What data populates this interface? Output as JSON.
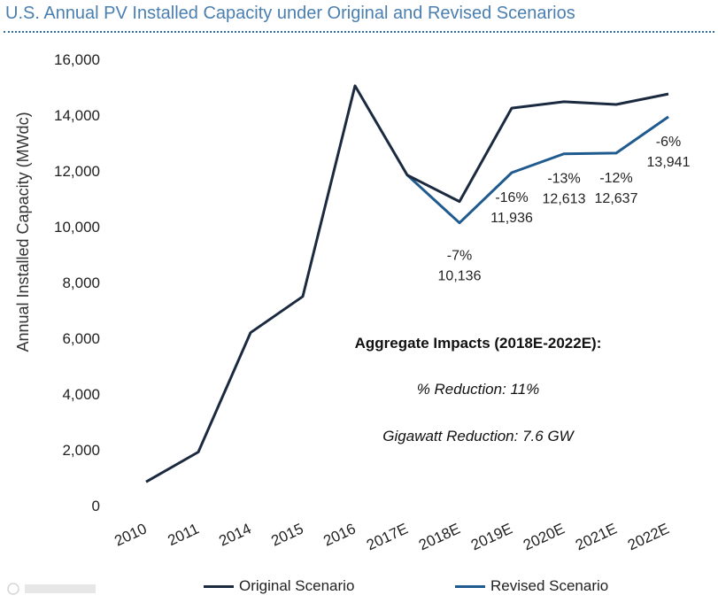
{
  "title": "U.S. Annual PV Installed Capacity under Original and Revised Scenarios",
  "chart_data": {
    "type": "line",
    "title": "U.S. Annual PV Installed Capacity under Original and Revised Scenarios",
    "xlabel": "",
    "ylabel": "Annual Installed Capacity (MWdc)",
    "ylim": [
      0,
      16000
    ],
    "yticks": [
      0,
      2000,
      4000,
      6000,
      8000,
      10000,
      12000,
      14000,
      16000
    ],
    "ytick_labels": [
      "0",
      "2,000",
      "4,000",
      "6,000",
      "8,000",
      "10,000",
      "12,000",
      "14,000",
      "16,000"
    ],
    "categories": [
      "2010",
      "2011",
      "2014",
      "2015",
      "2016",
      "2017E",
      "2018E",
      "2019E",
      "2020E",
      "2021E",
      "2022E"
    ],
    "grid": false,
    "legend_position": "bottom",
    "series": [
      {
        "name": "Original Scenario",
        "color": "#1b2a3f",
        "values": [
          850,
          1920,
          6200,
          7500,
          15050,
          11850,
          10900,
          14250,
          14480,
          14380,
          14760
        ]
      },
      {
        "name": "Revised Scenario",
        "color": "#1f5b8f",
        "values": [
          null,
          null,
          null,
          null,
          null,
          11850,
          10136,
          11936,
          12613,
          12637,
          13941
        ]
      }
    ],
    "data_labels": [
      {
        "category": "2018E",
        "pct": "-7%",
        "value": "10,136"
      },
      {
        "category": "2019E",
        "pct": "-16%",
        "value": "11,936"
      },
      {
        "category": "2020E",
        "pct": "-13%",
        "value": "12,613"
      },
      {
        "category": "2021E",
        "pct": "-12%",
        "value": "12,637"
      },
      {
        "category": "2022E",
        "pct": "-6%",
        "value": "13,941"
      }
    ],
    "annotations": {
      "heading": "Aggregate Impacts (2018E-2022E):",
      "line1": "% Reduction: 11%",
      "line2": "Gigawatt Reduction: 7.6 GW"
    }
  }
}
